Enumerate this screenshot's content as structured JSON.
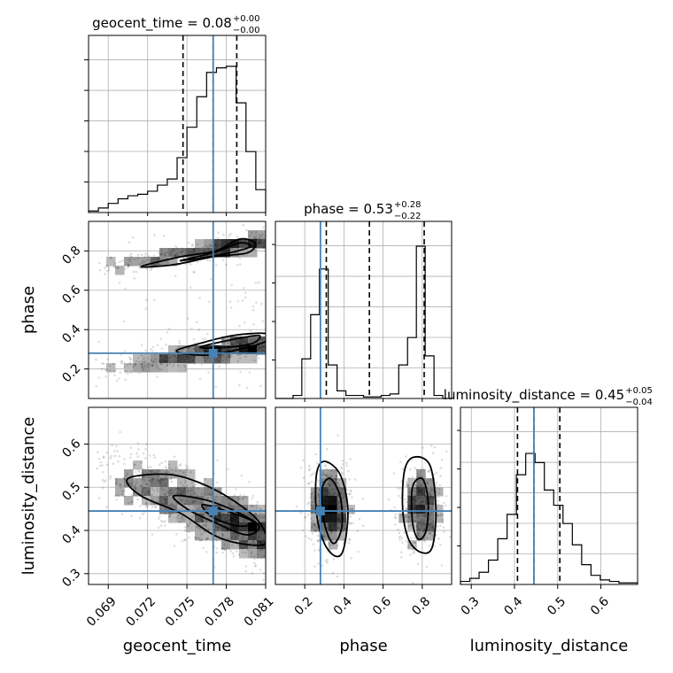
{
  "chart_data": {
    "type": "corner",
    "parameters": [
      {
        "name": "geocent_time",
        "label": "geocent_time",
        "title_main": "geocent_time = 0.08",
        "title_plus": "+0.00",
        "title_minus": "−0.00",
        "range": [
          0.0675,
          0.081
        ],
        "ticks": [
          0.069,
          0.072,
          0.075,
          0.078,
          0.081
        ],
        "tick_labels": [
          "0.069",
          "0.072",
          "0.075",
          "0.078",
          "0.081"
        ],
        "quantiles": [
          0.0747,
          0.077,
          0.0788
        ],
        "truth": 0.077,
        "hist": [
          1,
          3,
          6,
          9,
          11,
          12,
          14,
          18,
          22,
          36,
          56,
          76,
          92,
          95,
          96,
          72,
          40,
          15
        ]
      },
      {
        "name": "phase",
        "label": "phase",
        "title_main": "phase = 0.53",
        "title_plus": "+0.28",
        "title_minus": "−0.22",
        "range": [
          0.05,
          0.95
        ],
        "ticks": [
          0.2,
          0.4,
          0.6,
          0.8
        ],
        "tick_labels": [
          "0.2",
          "0.4",
          "0.6",
          "0.8"
        ],
        "quantiles": [
          0.31,
          0.53,
          0.81
        ],
        "truth": 0.28,
        "hist": [
          0,
          0,
          2,
          26,
          55,
          85,
          22,
          5,
          2,
          2,
          1,
          1,
          2,
          3,
          22,
          40,
          100,
          28,
          2,
          0
        ]
      },
      {
        "name": "luminosity_distance",
        "label": "luminosity_distance",
        "title_main": "luminosity_distance = 0.45",
        "title_plus": "+0.05",
        "title_minus": "−0.04",
        "range": [
          0.275,
          0.685
        ],
        "ticks": [
          0.3,
          0.4,
          0.5,
          0.6
        ],
        "tick_labels": [
          "0.3",
          "0.4",
          "0.5",
          "0.6"
        ],
        "quantiles": [
          0.407,
          0.445,
          0.505
        ],
        "truth": 0.445,
        "hist": [
          2,
          4,
          8,
          16,
          30,
          46,
          72,
          86,
          80,
          62,
          52,
          40,
          26,
          13,
          6,
          3,
          2,
          1,
          1
        ]
      }
    ],
    "grid": true,
    "truth_color": "#4682b4"
  }
}
